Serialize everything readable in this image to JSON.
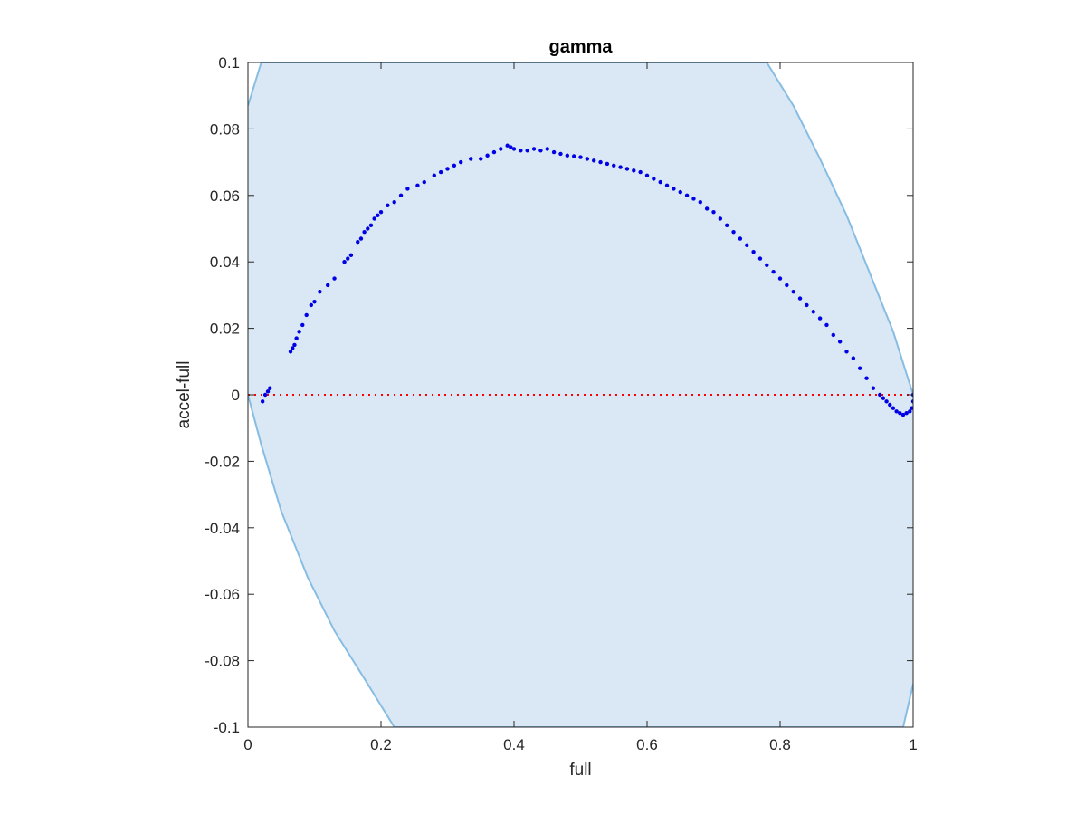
{
  "chart_data": {
    "type": "scatter",
    "title": "gamma",
    "xlabel": "full",
    "ylabel": "accel-full",
    "xlim": [
      0,
      1
    ],
    "ylim": [
      -0.1,
      0.1
    ],
    "x_ticks": [
      0,
      0.2,
      0.4,
      0.6,
      0.8,
      1
    ],
    "x_tick_labels": [
      "0",
      "0.2",
      "0.4",
      "0.6",
      "0.8",
      "1"
    ],
    "y_ticks": [
      -0.1,
      -0.08,
      -0.06,
      -0.04,
      -0.02,
      0,
      0.02,
      0.04,
      0.06,
      0.08,
      0.1
    ],
    "y_tick_labels": [
      "-0.1",
      "-0.08",
      "-0.06",
      "-0.04",
      "-0.02",
      "0",
      "0.02",
      "0.04",
      "0.06",
      "0.08",
      "0.1"
    ],
    "grid": false,
    "band": {
      "fill_color": "#d9e8f4",
      "edge_color": "#88bde3",
      "upper": [
        [
          0,
          0.087
        ],
        [
          0.02,
          0.1
        ],
        [
          0.78,
          0.1
        ],
        [
          0.82,
          0.087
        ],
        [
          0.86,
          0.071
        ],
        [
          0.9,
          0.054
        ],
        [
          0.94,
          0.034
        ],
        [
          0.97,
          0.019
        ],
        [
          1,
          0
        ]
      ],
      "lower": [
        [
          0,
          0
        ],
        [
          0.02,
          -0.015
        ],
        [
          0.05,
          -0.035
        ],
        [
          0.09,
          -0.055
        ],
        [
          0.13,
          -0.071
        ],
        [
          0.18,
          -0.087
        ],
        [
          0.22,
          -0.1
        ],
        [
          0.985,
          -0.1
        ],
        [
          1,
          -0.087
        ]
      ]
    },
    "reference_line": {
      "y": 0,
      "color": "#ff0000",
      "style": "dotted"
    },
    "series": [
      {
        "color": "#0000e6",
        "points": [
          [
            0.022,
            -0.002
          ],
          [
            0.026,
            0.0
          ],
          [
            0.03,
            0.001
          ],
          [
            0.033,
            0.002
          ],
          [
            0.064,
            0.013
          ],
          [
            0.067,
            0.014
          ],
          [
            0.07,
            0.015
          ],
          [
            0.073,
            0.017
          ],
          [
            0.077,
            0.019
          ],
          [
            0.082,
            0.021
          ],
          [
            0.088,
            0.024
          ],
          [
            0.095,
            0.027
          ],
          [
            0.1,
            0.028
          ],
          [
            0.108,
            0.031
          ],
          [
            0.12,
            0.033
          ],
          [
            0.13,
            0.035
          ],
          [
            0.145,
            0.04
          ],
          [
            0.15,
            0.041
          ],
          [
            0.155,
            0.042
          ],
          [
            0.165,
            0.046
          ],
          [
            0.17,
            0.047
          ],
          [
            0.175,
            0.049
          ],
          [
            0.18,
            0.05
          ],
          [
            0.185,
            0.051
          ],
          [
            0.19,
            0.053
          ],
          [
            0.195,
            0.054
          ],
          [
            0.2,
            0.055
          ],
          [
            0.21,
            0.057
          ],
          [
            0.22,
            0.058
          ],
          [
            0.23,
            0.06
          ],
          [
            0.24,
            0.062
          ],
          [
            0.255,
            0.063
          ],
          [
            0.265,
            0.064
          ],
          [
            0.28,
            0.066
          ],
          [
            0.29,
            0.067
          ],
          [
            0.3,
            0.068
          ],
          [
            0.31,
            0.069
          ],
          [
            0.32,
            0.07
          ],
          [
            0.335,
            0.071
          ],
          [
            0.35,
            0.071
          ],
          [
            0.36,
            0.072
          ],
          [
            0.37,
            0.073
          ],
          [
            0.38,
            0.074
          ],
          [
            0.39,
            0.075
          ],
          [
            0.395,
            0.0745
          ],
          [
            0.4,
            0.074
          ],
          [
            0.41,
            0.0735
          ],
          [
            0.42,
            0.0735
          ],
          [
            0.43,
            0.074
          ],
          [
            0.44,
            0.0735
          ],
          [
            0.45,
            0.074
          ],
          [
            0.46,
            0.073
          ],
          [
            0.47,
            0.0725
          ],
          [
            0.48,
            0.072
          ],
          [
            0.49,
            0.0718
          ],
          [
            0.5,
            0.0715
          ],
          [
            0.51,
            0.071
          ],
          [
            0.52,
            0.0705
          ],
          [
            0.53,
            0.07
          ],
          [
            0.54,
            0.0695
          ],
          [
            0.55,
            0.069
          ],
          [
            0.56,
            0.0685
          ],
          [
            0.57,
            0.068
          ],
          [
            0.58,
            0.0675
          ],
          [
            0.59,
            0.067
          ],
          [
            0.6,
            0.066
          ],
          [
            0.61,
            0.065
          ],
          [
            0.62,
            0.064
          ],
          [
            0.63,
            0.063
          ],
          [
            0.64,
            0.062
          ],
          [
            0.65,
            0.061
          ],
          [
            0.66,
            0.06
          ],
          [
            0.67,
            0.059
          ],
          [
            0.68,
            0.058
          ],
          [
            0.69,
            0.056
          ],
          [
            0.7,
            0.055
          ],
          [
            0.71,
            0.053
          ],
          [
            0.72,
            0.051
          ],
          [
            0.73,
            0.049
          ],
          [
            0.74,
            0.047
          ],
          [
            0.75,
            0.045
          ],
          [
            0.76,
            0.043
          ],
          [
            0.77,
            0.041
          ],
          [
            0.78,
            0.039
          ],
          [
            0.79,
            0.037
          ],
          [
            0.8,
            0.035
          ],
          [
            0.81,
            0.033
          ],
          [
            0.82,
            0.031
          ],
          [
            0.83,
            0.029
          ],
          [
            0.84,
            0.027
          ],
          [
            0.85,
            0.025
          ],
          [
            0.86,
            0.023
          ],
          [
            0.87,
            0.021
          ],
          [
            0.88,
            0.018
          ],
          [
            0.89,
            0.016
          ],
          [
            0.9,
            0.013
          ],
          [
            0.91,
            0.011
          ],
          [
            0.92,
            0.008
          ],
          [
            0.93,
            0.005
          ],
          [
            0.94,
            0.002
          ],
          [
            0.95,
            0.0
          ],
          [
            0.955,
            -0.001
          ],
          [
            0.96,
            -0.002
          ],
          [
            0.965,
            -0.003
          ],
          [
            0.97,
            -0.004
          ],
          [
            0.975,
            -0.005
          ],
          [
            0.98,
            -0.0055
          ],
          [
            0.985,
            -0.006
          ],
          [
            0.99,
            -0.0055
          ],
          [
            0.995,
            -0.005
          ],
          [
            0.998,
            -0.004
          ],
          [
            1.0,
            -0.002
          ],
          [
            1.0,
            0.0
          ]
        ]
      }
    ]
  }
}
